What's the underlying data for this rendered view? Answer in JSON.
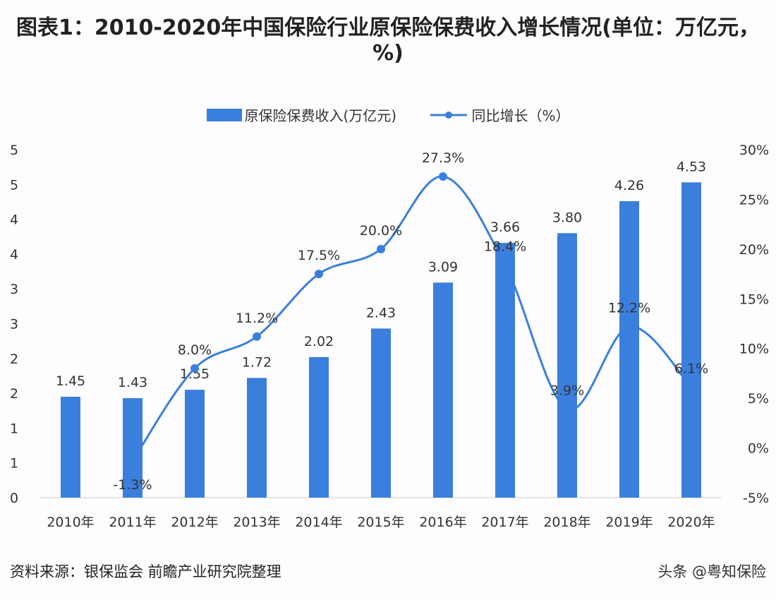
{
  "title": "图表1：2010-2020年中国保险行业原保险保费收入增长情况(单位：万亿元，%)",
  "source": "资料来源：银保监会 前瞻产业研究院整理",
  "watermark": "头条 @粤知保险",
  "chart_data": {
    "type": "bar+line",
    "categories": [
      "2010年",
      "2011年",
      "2012年",
      "2013年",
      "2014年",
      "2015年",
      "2016年",
      "2017年",
      "2018年",
      "2019年",
      "2020年"
    ],
    "series": [
      {
        "name": "原保险保费收入(万亿元)",
        "type": "bar",
        "axis": "left",
        "color": "#3a7fdc",
        "values": [
          1.45,
          1.43,
          1.55,
          1.72,
          2.02,
          2.43,
          3.09,
          3.66,
          3.8,
          4.26,
          4.53
        ],
        "labels": [
          "1.45",
          "1.43",
          "1.55",
          "1.72",
          "2.02",
          "2.43",
          "3.09",
          "3.66",
          "3.80",
          "4.26",
          "4.53"
        ]
      },
      {
        "name": "同比增长（%）",
        "type": "line",
        "axis": "right",
        "color": "#3a7fdc",
        "values": [
          null,
          -1.3,
          8.0,
          11.2,
          17.5,
          20.0,
          27.3,
          18.4,
          3.9,
          12.2,
          6.1
        ],
        "labels": [
          "",
          "-1.3%",
          "8.0%",
          "11.2%",
          "17.5%",
          "20.0%",
          "27.3%",
          "18.4%",
          "3.9%",
          "12.2%",
          "6.1%"
        ]
      }
    ],
    "left_axis": {
      "ylim": [
        0,
        5
      ],
      "ticks": [
        "0",
        "1",
        "1",
        "2",
        "2",
        "3",
        "3",
        "4",
        "4",
        "5",
        "5"
      ]
    },
    "right_axis": {
      "ylim": [
        -5,
        30
      ],
      "ticks": [
        "-5%",
        "0%",
        "5%",
        "10%",
        "15%",
        "20%",
        "25%",
        "30%"
      ]
    },
    "grid": false,
    "legend_position": "top"
  }
}
